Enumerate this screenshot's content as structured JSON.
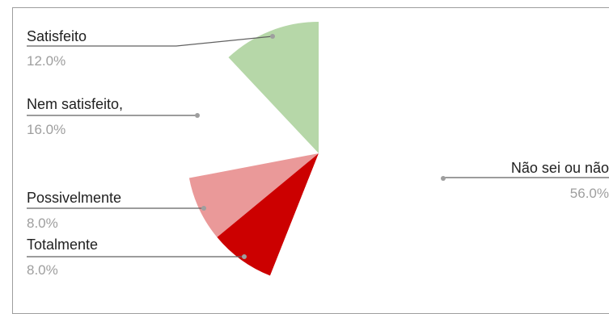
{
  "chart_data": {
    "type": "pie",
    "title": "",
    "slices": [
      {
        "label": "Satisfeito",
        "value_text": "12.0%",
        "value": 12.0,
        "color": "#b6d7a8"
      },
      {
        "label": "Nem satisfeito,",
        "value_text": "16.0%",
        "value": 16.0,
        "color": "#ffffff"
      },
      {
        "label": "Possivelmente",
        "value_text": "8.0%",
        "value": 8.0,
        "color": "#ea9999"
      },
      {
        "label": "Totalmente",
        "value_text": "8.0%",
        "value": 8.0,
        "color": "#cc0000"
      },
      {
        "label": "Não sei ou não",
        "value_text": "56.0%",
        "value": 56.0,
        "color": "#ffffff"
      }
    ],
    "legend": "callout-labels"
  }
}
